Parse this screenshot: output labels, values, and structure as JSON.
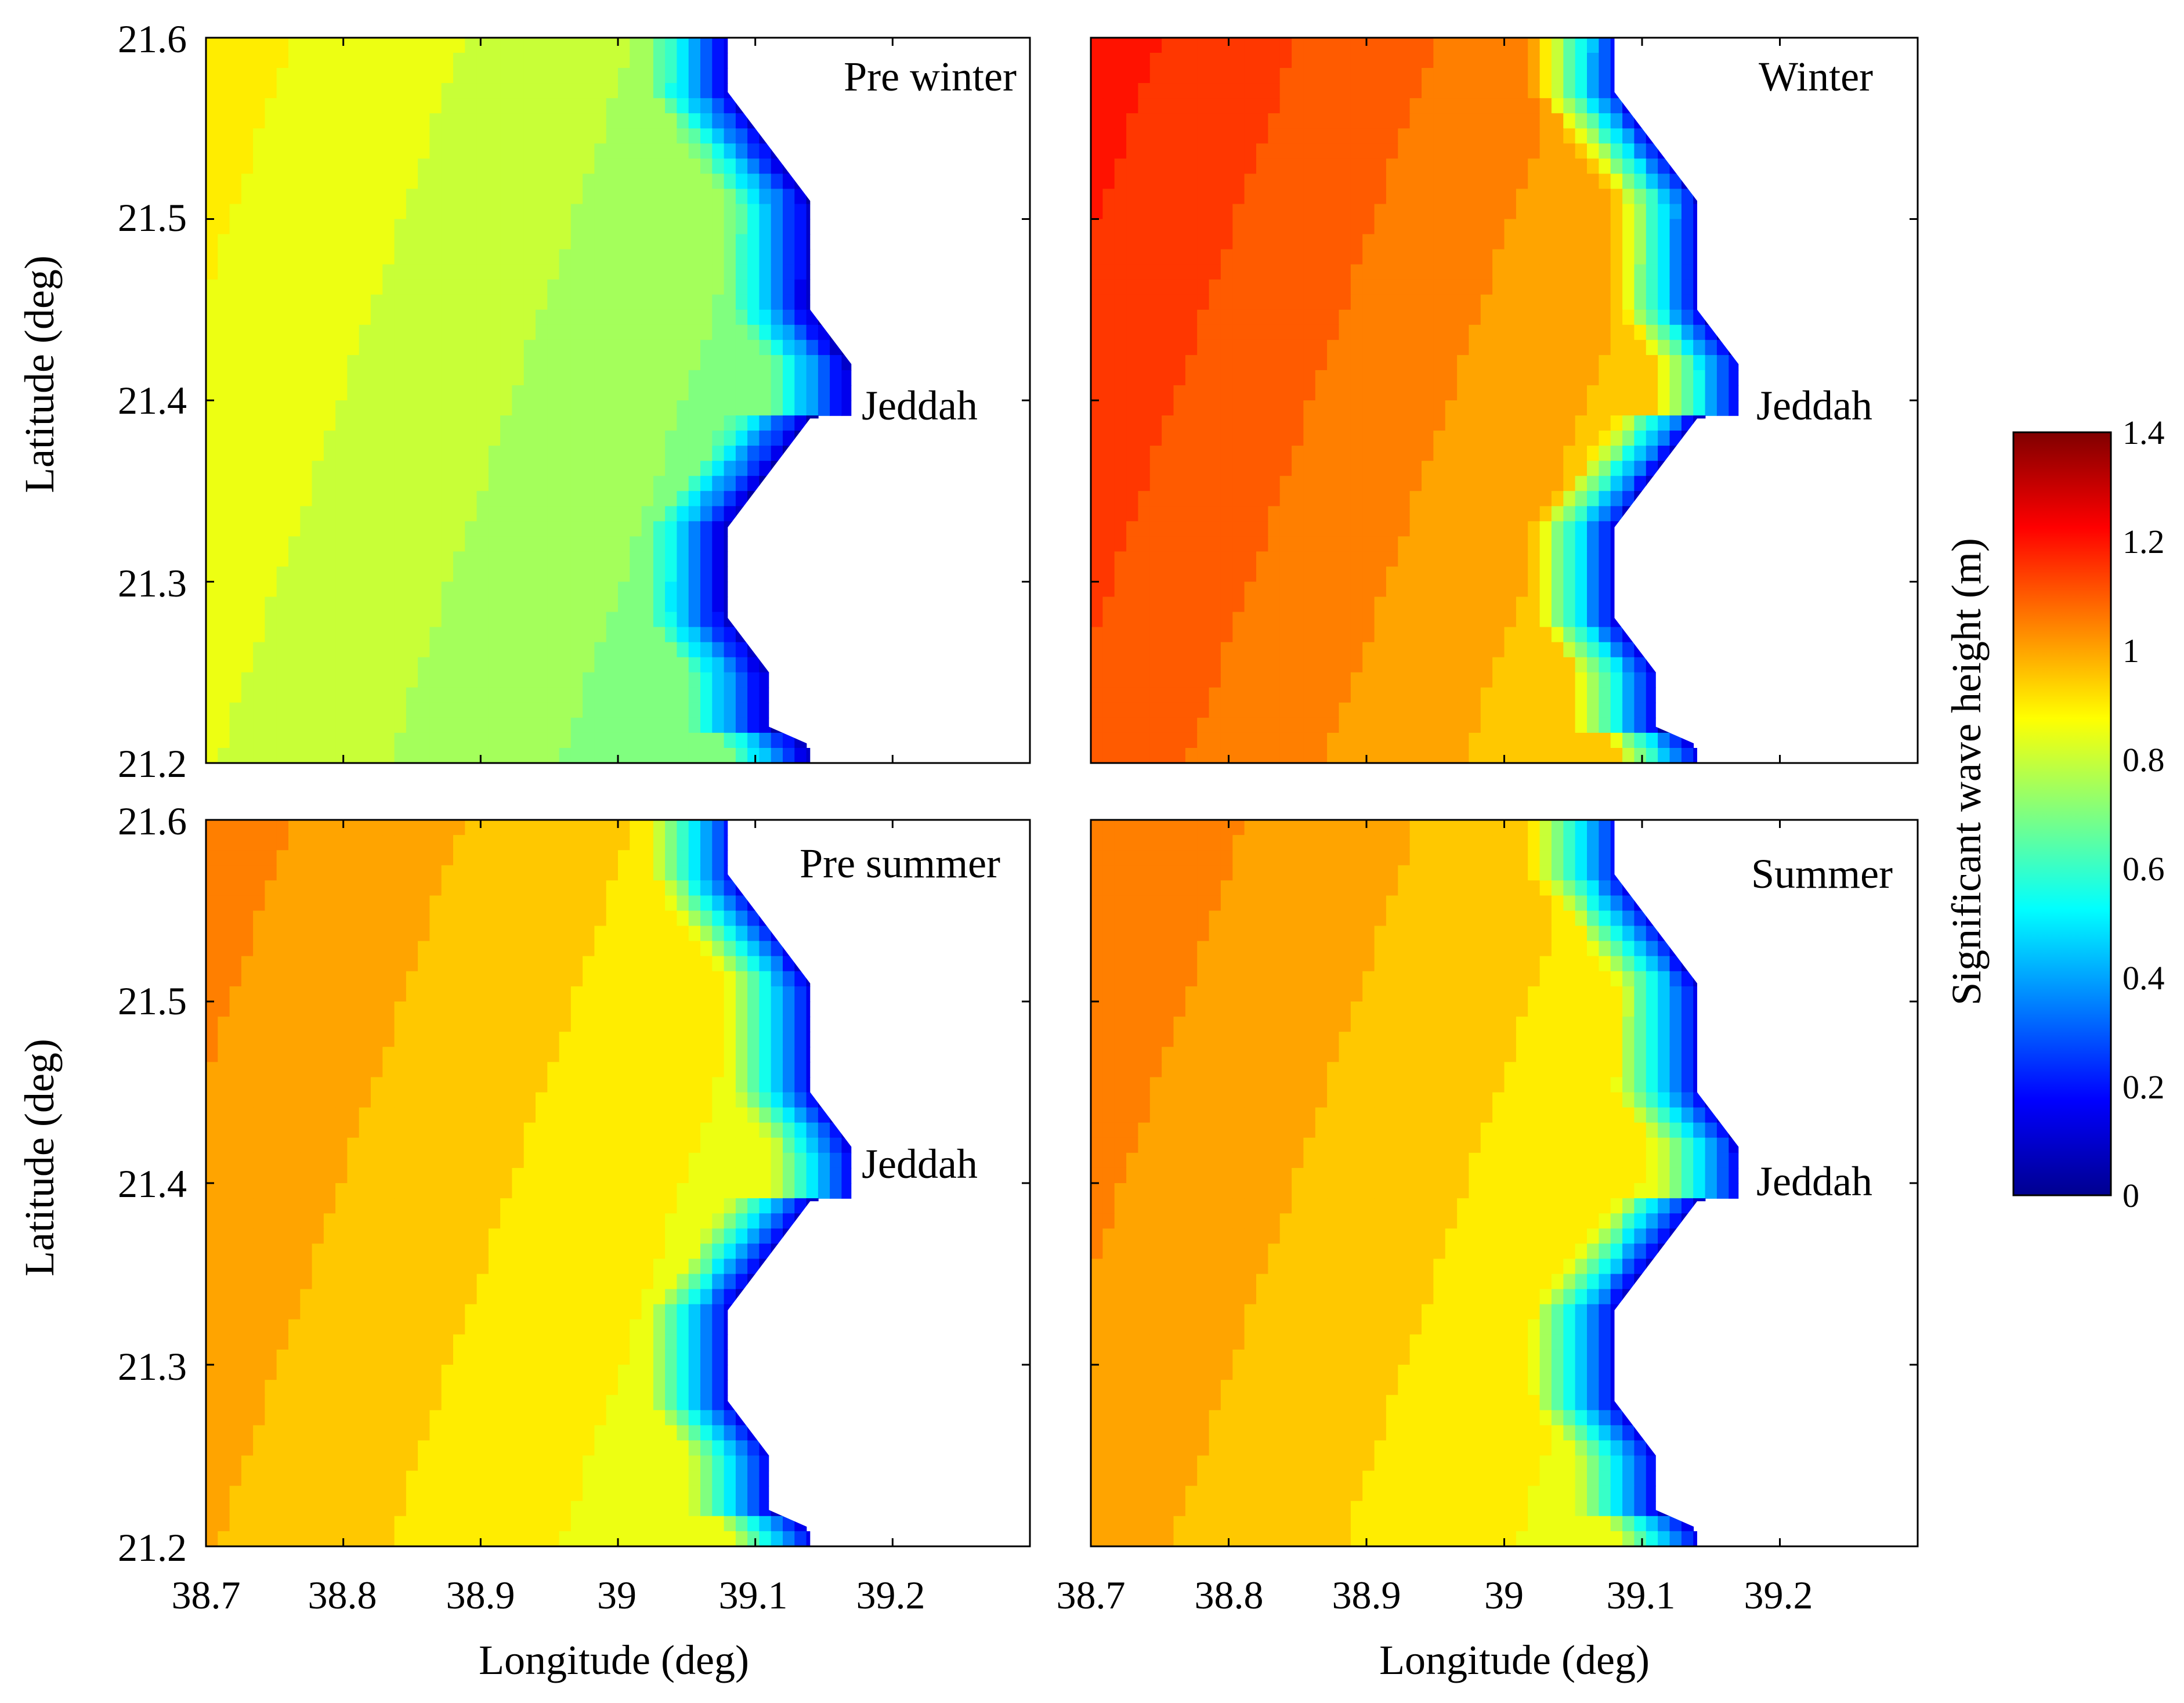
{
  "chart_data": {
    "type": "heatmap",
    "subtype": "filled contour map",
    "x_ticks": [
      "38.7",
      "38.8",
      "38.9",
      "39",
      "39.1",
      "39.2"
    ],
    "y_ticks": [
      "21.2",
      "21.3",
      "21.4",
      "21.5",
      "21.6"
    ],
    "xlim": [
      38.7,
      39.3
    ],
    "ylim": [
      21.2,
      21.6
    ],
    "xlabel": "Longitude (deg)",
    "ylabel": "Latitude (deg)",
    "colorbar": {
      "label": "Significant wave height (m)",
      "range": [
        0,
        1.4
      ],
      "ticks": [
        "0",
        "0.2",
        "0.4",
        "0.6",
        "0.8",
        "1",
        "1.2",
        "1.4"
      ],
      "colormap": "jet"
    },
    "place": {
      "name": "Jeddah",
      "lon": 39.17,
      "lat": 21.4
    },
    "coastline_lon_lat": [
      [
        39.08,
        21.6
      ],
      [
        39.08,
        21.57
      ],
      [
        39.14,
        21.51
      ],
      [
        39.14,
        21.45
      ],
      [
        39.17,
        21.42
      ],
      [
        39.17,
        21.39
      ],
      [
        39.14,
        21.39
      ],
      [
        39.08,
        21.33
      ],
      [
        39.08,
        21.28
      ],
      [
        39.11,
        21.25
      ],
      [
        39.11,
        21.22
      ],
      [
        39.14,
        21.21
      ],
      [
        39.14,
        21.2
      ]
    ],
    "panels": [
      {
        "title": "Pre winter",
        "offshore_height_m": 0.9,
        "near_shore_height_m": 0.7,
        "coast_min_height_m": 0.1
      },
      {
        "title": "Winter",
        "offshore_height_m": 1.2,
        "near_shore_height_m": 0.95,
        "coast_min_height_m": 0.15
      },
      {
        "title": "Pre summer",
        "offshore_height_m": 1.05,
        "near_shore_height_m": 0.85,
        "coast_min_height_m": 0.15
      },
      {
        "title": "Summer",
        "offshore_height_m": 1.07,
        "near_shore_height_m": 0.87,
        "coast_min_height_m": 0.15
      }
    ]
  }
}
